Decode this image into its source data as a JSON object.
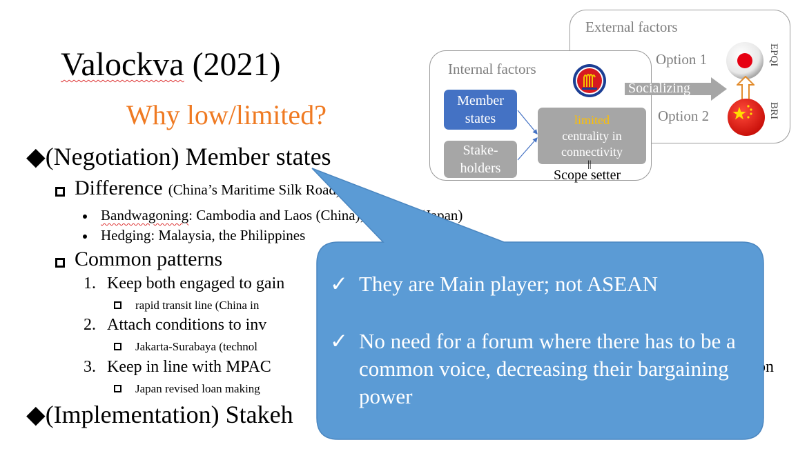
{
  "slide": {
    "title": {
      "name": "Valockva",
      "year": " (2021)"
    },
    "subtitle": "Why low/limited?",
    "outline": {
      "diamond": "◆",
      "negotiation": "(Negotiation) Member states",
      "difference": {
        "label": "Difference",
        "note": "(China’s Maritime Silk Road)"
      },
      "bandwagoning": {
        "term": "Bandwagoning",
        "rest": ": Cambodia and Laos (China); Vietnam (Japan)"
      },
      "hedging": "Hedging: Malaysia, the Philippines",
      "common_patterns": "Common patterns",
      "p1": {
        "num": "1.",
        "text": "Keep both engaged to gain"
      },
      "p1_sub": "rapid transit line (China in",
      "p2": {
        "num": "2.",
        "text": "Attach conditions to inv"
      },
      "p2_sub": "Jakarta-Surabaya (technol",
      "p3": {
        "num": "3.",
        "text": "Keep in line with MPAC",
        "tail": "on"
      },
      "p3_sub": "Japan revised loan making",
      "implementation": "(Implementation) Stakeh"
    }
  },
  "diagram": {
    "external_label": "External factors",
    "internal_label": "Internal factors",
    "member_states": [
      "Member",
      "states"
    ],
    "stakeholders": [
      "Stake-",
      "holders"
    ],
    "center": {
      "highlight": "limited",
      "line2": "centrality in",
      "line3": "connectivity"
    },
    "equals": "||",
    "scope_setter": "Scope setter",
    "socializing": "Socializing",
    "option1": "Option 1",
    "option2": "Option 2",
    "epqi": "EPQI",
    "bri": "BRI"
  },
  "callout": {
    "check": "✓",
    "point1": "They are Main player; not ASEAN",
    "point2": "No need for a forum where there has to be a common voice, decreasing their bargaining power"
  },
  "colors": {
    "callout_fill": "#5b9bd5",
    "accent_orange": "#ef7a22",
    "member_blue": "#4472c4"
  }
}
